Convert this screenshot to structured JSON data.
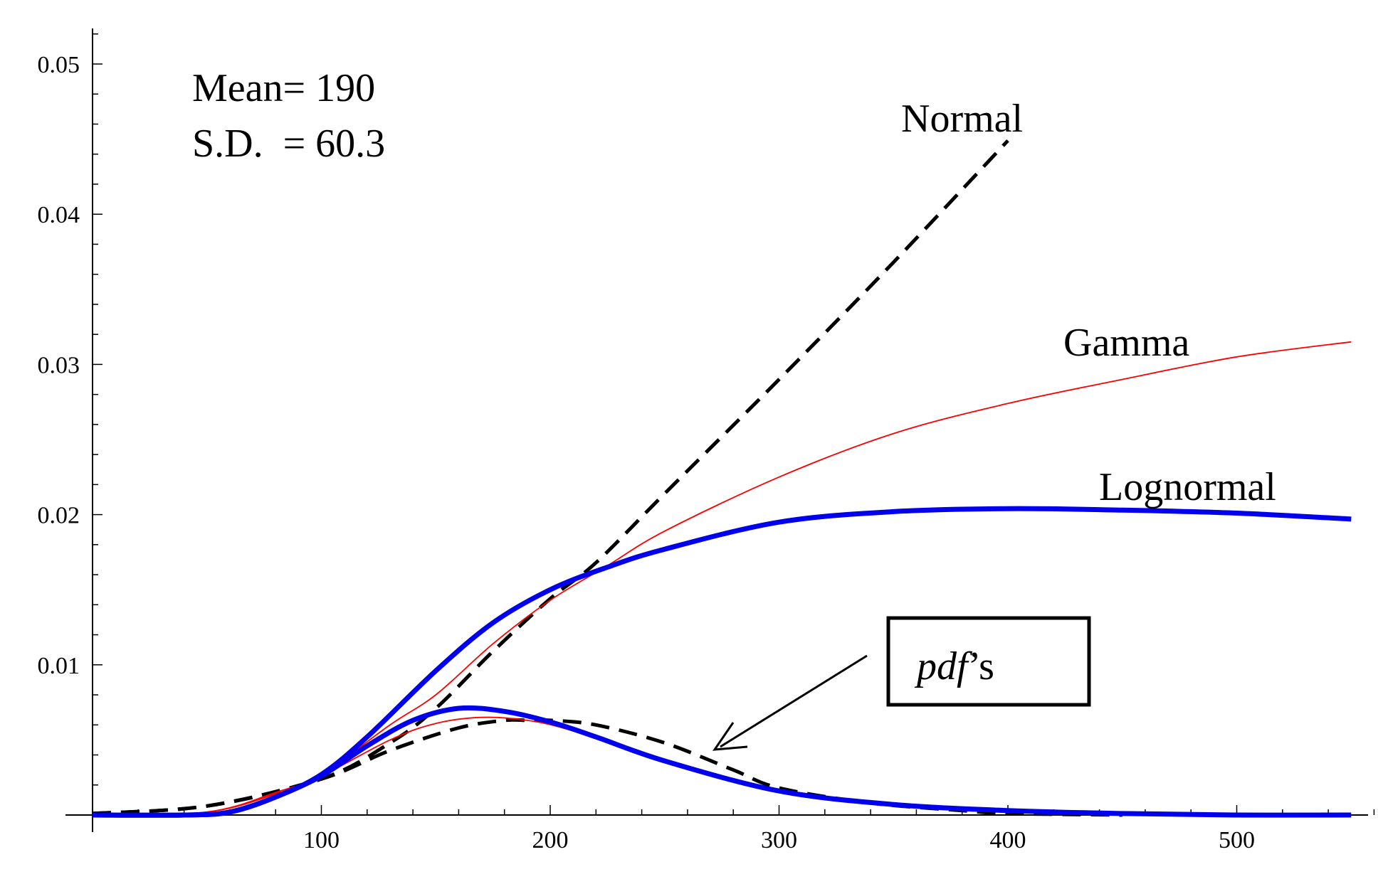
{
  "chart_data": {
    "type": "line",
    "title": "",
    "xlabel": "",
    "ylabel": "",
    "xlim": [
      0,
      560
    ],
    "ylim": [
      0,
      0.052
    ],
    "x_ticks": [
      100,
      200,
      300,
      400,
      500
    ],
    "x_tick_labels": [
      "100",
      "200",
      "300",
      "400",
      "500"
    ],
    "y_ticks": [
      0.01,
      0.02,
      0.03,
      0.04,
      0.05
    ],
    "y_tick_labels": [
      "0.01",
      "0.02",
      "0.03",
      "0.04",
      "0.05"
    ],
    "grid": false,
    "annotations": {
      "mean_text": "Mean= 190",
      "sd_text": "S.D.  = 60.3",
      "pdf_box_text_italic": "pdf",
      "pdf_box_text_suffix": "’s"
    },
    "series": [
      {
        "name": "Normal",
        "label": "Normal",
        "kind": "hazard",
        "style": "dashed",
        "color": "#000000",
        "x": [
          0,
          50,
          100,
          130,
          150,
          175,
          200,
          220,
          250,
          300,
          350,
          400
        ],
        "values": [
          0.0001,
          0.0006,
          0.0024,
          0.0048,
          0.0071,
          0.0109,
          0.0144,
          0.0168,
          0.0214,
          0.029,
          0.0368,
          0.0449
        ]
      },
      {
        "name": "Gamma",
        "label": "Gamma",
        "kind": "hazard",
        "style": "thin",
        "color": "#ff0000",
        "x": [
          0,
          50,
          80,
          100,
          130,
          150,
          175,
          200,
          225,
          250,
          300,
          350,
          400,
          450,
          500,
          550
        ],
        "values": [
          0.0,
          0.0002,
          0.0015,
          0.0027,
          0.006,
          0.008,
          0.0114,
          0.0143,
          0.0166,
          0.0189,
          0.0225,
          0.0254,
          0.0274,
          0.029,
          0.0305,
          0.0315
        ]
      },
      {
        "name": "Lognormal",
        "label": "Lognormal",
        "kind": "hazard",
        "style": "thick",
        "color": "#0000ee",
        "x": [
          0,
          40,
          60,
          80,
          100,
          120,
          150,
          175,
          200,
          225,
          250,
          300,
          350,
          400,
          450,
          500,
          550
        ],
        "values": [
          0.0,
          0.0,
          0.0002,
          0.0012,
          0.0027,
          0.0052,
          0.0096,
          0.0128,
          0.015,
          0.0165,
          0.0177,
          0.0195,
          0.0202,
          0.0204,
          0.0203,
          0.0201,
          0.0197
        ]
      },
      {
        "name": "Normal pdf",
        "label": "",
        "kind": "pdf",
        "style": "dashed",
        "color": "#000000",
        "x": [
          0,
          50,
          100,
          130,
          160,
          180,
          190,
          200,
          220,
          250,
          280,
          300,
          340,
          380,
          400,
          450
        ],
        "values": [
          0.0001,
          0.0006,
          0.0024,
          0.0043,
          0.0058,
          0.0063,
          0.0063,
          0.0063,
          0.006,
          0.0048,
          0.003,
          0.0018,
          0.0008,
          0.0003,
          0.0001,
          0.0
        ]
      },
      {
        "name": "Gamma pdf",
        "label": "",
        "kind": "pdf",
        "style": "thin",
        "color": "#ff0000",
        "x": [
          0,
          50,
          80,
          100,
          130,
          150,
          170,
          190,
          210,
          250,
          300,
          350,
          400,
          450,
          500,
          550
        ],
        "values": [
          0.0,
          0.0002,
          0.0014,
          0.0026,
          0.005,
          0.0061,
          0.0065,
          0.0063,
          0.0056,
          0.0036,
          0.0016,
          0.0007,
          0.0003,
          0.0001,
          0.0,
          0.0
        ]
      },
      {
        "name": "Lognormal pdf",
        "label": "",
        "kind": "pdf",
        "style": "thick",
        "color": "#0000ee",
        "x": [
          0,
          40,
          60,
          80,
          100,
          120,
          140,
          160,
          180,
          200,
          220,
          250,
          300,
          350,
          400,
          450,
          500,
          550
        ],
        "values": [
          0.0,
          0.0,
          0.0002,
          0.0012,
          0.0026,
          0.0046,
          0.0063,
          0.0071,
          0.0069,
          0.0062,
          0.0052,
          0.0036,
          0.0016,
          0.0007,
          0.0003,
          0.0001,
          0.0,
          0.0
        ]
      }
    ]
  }
}
